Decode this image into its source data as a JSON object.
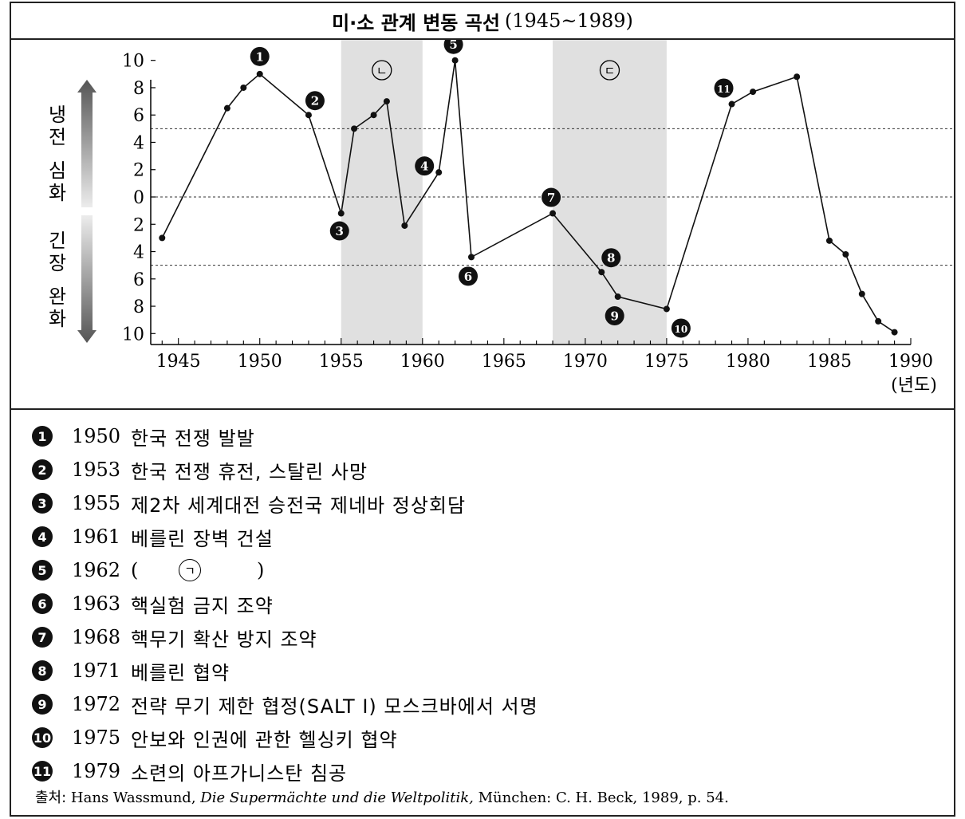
{
  "title": "미·소 관계 변동 곡선",
  "title_range": "(1945~1989)",
  "y_axis_upper": "냉전 심화",
  "y_axis_lower": "긴장 완화",
  "x_unit_label": "(년도)",
  "shaded_labels": [
    "ㄴ",
    "ㄷ"
  ],
  "chart_data": {
    "type": "line",
    "title": "미·소 관계 변동 곡선 (1945~1989)",
    "xlabel": "(년도)",
    "ylabel_upper": "냉전 심화",
    "ylabel_lower": "긴장 완화",
    "xlim": [
      1943.3,
      1990
    ],
    "ylim": [
      -10.8,
      10.8
    ],
    "x_ticks": [
      1945,
      1950,
      1955,
      1960,
      1965,
      1970,
      1975,
      1980,
      1985,
      1990
    ],
    "y_ticks": [
      10,
      8,
      6,
      4,
      2,
      0,
      -2,
      -4,
      -6,
      -8,
      -10
    ],
    "y_tick_labels": [
      "10",
      "8",
      "6",
      "4",
      "2",
      "0",
      "2",
      "4",
      "6",
      "8",
      "10"
    ],
    "reference_lines": [
      5,
      0,
      -5
    ],
    "shaded_periods": [
      {
        "label": "ㄴ",
        "from": 1955,
        "to": 1960
      },
      {
        "label": "ㄷ",
        "from": 1968,
        "to": 1975
      }
    ],
    "series": [
      {
        "x": [
          1944,
          1948,
          1949,
          1950,
          1953,
          1955,
          1955.8,
          1957,
          1957.8,
          1958.9,
          1961,
          1962,
          1963,
          1968,
          1971,
          1972,
          1975,
          1979,
          1980.3,
          1983,
          1985,
          1986,
          1987,
          1988,
          1989
        ],
        "y": [
          -3,
          6.5,
          8,
          9,
          6,
          -1.2,
          5,
          6,
          7,
          -2.1,
          1.8,
          10,
          -4.4,
          -1.2,
          -5.5,
          -7.3,
          -8.2,
          6.8,
          7.7,
          8.8,
          -3.2,
          -4.2,
          -7.1,
          -9.1,
          -9.9
        ]
      }
    ],
    "event_markers": [
      {
        "num": "1",
        "x": 1950,
        "y": 9
      },
      {
        "num": "2",
        "x": 1953,
        "y": 6
      },
      {
        "num": "3",
        "x": 1955,
        "y": -1.2
      },
      {
        "num": "4",
        "x": 1961,
        "y": 1.8
      },
      {
        "num": "5",
        "x": 1962,
        "y": 10
      },
      {
        "num": "6",
        "x": 1963,
        "y": -4.4
      },
      {
        "num": "7",
        "x": 1968,
        "y": -1.2
      },
      {
        "num": "8",
        "x": 1971,
        "y": -5.5
      },
      {
        "num": "9",
        "x": 1972,
        "y": -7.3
      },
      {
        "num": "10",
        "x": 1975,
        "y": -8.2
      },
      {
        "num": "11",
        "x": 1979,
        "y": 6.8
      }
    ]
  },
  "events": [
    {
      "num": "1",
      "year": "1950",
      "text": "한국 전쟁 발발"
    },
    {
      "num": "2",
      "year": "1953",
      "text": "한국 전쟁 휴전, 스탈린 사망"
    },
    {
      "num": "3",
      "year": "1955",
      "text": "제2차 세계대전 승전국 제네바 정상회담"
    },
    {
      "num": "4",
      "year": "1961",
      "text": "베를린 장벽 건설"
    },
    {
      "num": "6",
      "year": "1963",
      "text": "핵실험 금지 조약"
    },
    {
      "num": "7",
      "year": "1968",
      "text": "핵무기 확산 방지 조약"
    },
    {
      "num": "8",
      "year": "1971",
      "text": "베를린 협약"
    },
    {
      "num": "9",
      "year": "1972",
      "text": "전략 무기 제한 협정(SALT Ⅰ) 모스크바에서 서명"
    },
    {
      "num": "10",
      "year": "1975",
      "text": "안보와 인권에 관한 헬싱키 협약"
    },
    {
      "num": "11",
      "year": "1979",
      "text": "소련의 아프가니스탄 침공"
    }
  ],
  "blank_event": {
    "num": "5",
    "year": "1962",
    "open": "(",
    "mark": "ㄱ",
    "close": ")"
  },
  "source": {
    "label": "출처:",
    "author": "Hans Wassmund,",
    "book": "Die Supermächte und die Weltpolitik,",
    "rest": "München: C. H. Beck, 1989, p. 54."
  },
  "colors": {
    "shade": "#e0e0e0",
    "line": "#111111",
    "arrow_dark": "#555555",
    "arrow_light": "#e4e4e4"
  }
}
